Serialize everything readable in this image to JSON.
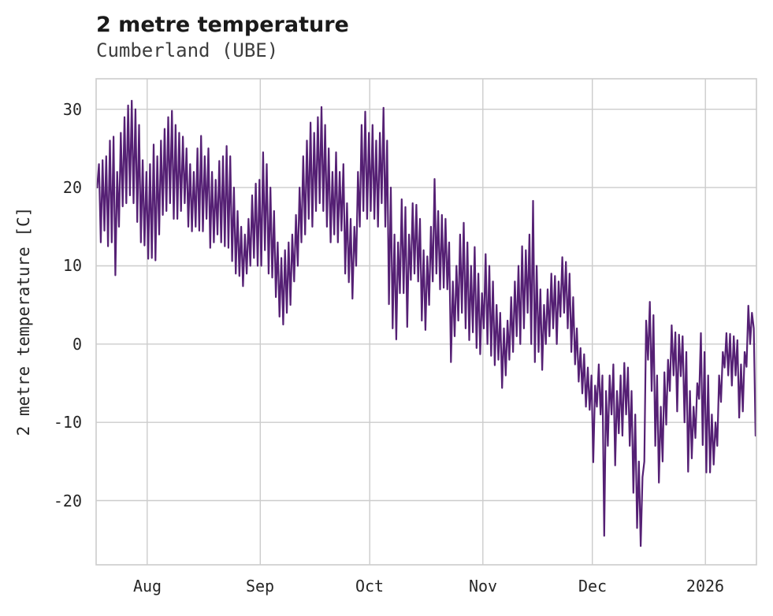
{
  "header": {
    "title": "2 metre temperature",
    "subtitle": "Cumberland (UBE)"
  },
  "chart_data": {
    "type": "line",
    "title": "2 metre temperature",
    "subtitle": "Cumberland (UBE)",
    "xlabel": "",
    "ylabel": "2 metre temperature [C]",
    "legend": "none",
    "grid": "on",
    "line_color": "#552074",
    "grid_color": "#cccccc",
    "background_color": "#ffffff",
    "y_ticks": [
      30,
      20,
      10,
      0,
      -10,
      -20
    ],
    "y_axis_range": [
      -28.2,
      33.9
    ],
    "x_tick_labels": [
      "Aug",
      "Sep",
      "Oct",
      "Nov",
      "Dec",
      "2026"
    ],
    "x_tick_day_index": [
      14,
      45,
      75,
      106,
      136,
      167
    ],
    "x_start_day": "Jul 18",
    "days_total": 181,
    "series_description": "hourly 2 metre temperature shown as daily [first,second] swing values in degrees C, day 0 = Jul 18",
    "daily_min_max": [
      [
        20,
        23
      ],
      [
        13,
        23.5
      ],
      [
        14.5,
        24
      ],
      [
        12.5,
        26
      ],
      [
        13,
        26.5
      ],
      [
        8.8,
        22
      ],
      [
        15,
        27
      ],
      [
        17.6,
        29
      ],
      [
        18,
        30.5
      ],
      [
        19,
        31.1
      ],
      [
        18,
        30
      ],
      [
        15.6,
        28
      ],
      [
        13,
        23.5
      ],
      [
        12.6,
        22
      ],
      [
        10.9,
        23
      ],
      [
        11,
        25.5
      ],
      [
        10.7,
        24
      ],
      [
        14,
        26
      ],
      [
        16.5,
        27.5
      ],
      [
        17,
        29
      ],
      [
        18,
        29.8
      ],
      [
        16,
        28
      ],
      [
        16,
        27
      ],
      [
        17,
        26.5
      ],
      [
        18,
        25
      ],
      [
        15,
        23
      ],
      [
        14.4,
        22
      ],
      [
        15,
        25
      ],
      [
        14.5,
        26.6
      ],
      [
        14.4,
        24
      ],
      [
        16,
        25
      ],
      [
        12.3,
        22
      ],
      [
        13,
        21
      ],
      [
        14,
        23.4
      ],
      [
        13,
        24
      ],
      [
        12.5,
        25.3
      ],
      [
        12.3,
        24
      ],
      [
        10.6,
        20
      ],
      [
        9,
        17
      ],
      [
        8.7,
        15
      ],
      [
        7.4,
        14
      ],
      [
        9,
        16
      ],
      [
        10,
        19
      ],
      [
        11,
        20.5
      ],
      [
        10,
        21
      ],
      [
        10,
        24.5
      ],
      [
        12,
        23
      ],
      [
        9,
        20
      ],
      [
        8.5,
        17
      ],
      [
        6,
        13
      ],
      [
        3.5,
        11
      ],
      [
        2.5,
        12
      ],
      [
        4,
        13
      ],
      [
        5,
        14
      ],
      [
        8,
        16.5
      ],
      [
        10,
        20
      ],
      [
        13,
        24
      ],
      [
        14,
        26
      ],
      [
        16,
        28.3
      ],
      [
        15,
        27
      ],
      [
        17,
        29
      ],
      [
        18,
        30.3
      ],
      [
        17,
        28
      ],
      [
        15,
        25
      ],
      [
        13,
        22
      ],
      [
        14,
        24.5
      ],
      [
        13,
        22
      ],
      [
        14.5,
        23
      ],
      [
        9,
        18
      ],
      [
        7.9,
        16
      ],
      [
        5.8,
        15
      ],
      [
        10,
        22
      ],
      [
        15,
        28
      ],
      [
        17,
        29.7
      ],
      [
        16,
        27
      ],
      [
        17,
        28
      ],
      [
        16,
        26
      ],
      [
        15,
        27
      ],
      [
        18,
        30.2
      ],
      [
        15,
        26
      ],
      [
        5.1,
        20
      ],
      [
        2,
        14
      ],
      [
        0.6,
        13
      ],
      [
        6.5,
        18.5
      ],
      [
        6.5,
        17.5
      ],
      [
        2.2,
        14
      ],
      [
        8.2,
        18
      ],
      [
        9,
        17.8
      ],
      [
        8,
        16
      ],
      [
        3,
        12
      ],
      [
        1.8,
        11.2
      ],
      [
        5,
        15
      ],
      [
        8,
        21.1
      ],
      [
        9,
        17
      ],
      [
        7,
        16.5
      ],
      [
        7.2,
        16
      ],
      [
        7,
        13
      ],
      [
        -2.3,
        8
      ],
      [
        1,
        10
      ],
      [
        3,
        14
      ],
      [
        4,
        15.5
      ],
      [
        2,
        13
      ],
      [
        0.5,
        10
      ],
      [
        1.5,
        12.4
      ],
      [
        -0.5,
        9
      ],
      [
        -1.3,
        6.5
      ],
      [
        2,
        11.5
      ],
      [
        0,
        10
      ],
      [
        -1.5,
        8
      ],
      [
        -2.7,
        5
      ],
      [
        -2,
        4
      ],
      [
        -5.6,
        2
      ],
      [
        -4,
        3
      ],
      [
        -2,
        6
      ],
      [
        -1,
        8
      ],
      [
        1,
        10
      ],
      [
        0,
        12.5
      ],
      [
        2,
        12
      ],
      [
        4,
        14
      ],
      [
        0,
        18.3
      ],
      [
        -2.3,
        10
      ],
      [
        -1,
        7
      ],
      [
        -3.3,
        5
      ],
      [
        0,
        7
      ],
      [
        1,
        9
      ],
      [
        2,
        8.7
      ],
      [
        0,
        8
      ],
      [
        3.5,
        11.1
      ],
      [
        4,
        10.5
      ],
      [
        2,
        9
      ],
      [
        -1,
        6
      ],
      [
        -2.6,
        2
      ],
      [
        -4.8,
        -0.5
      ],
      [
        -6.3,
        -1.3
      ],
      [
        -8,
        -3
      ],
      [
        -8.4,
        -4
      ],
      [
        -15.1,
        -5.3
      ],
      [
        -8,
        -2.6
      ],
      [
        -9,
        -4
      ],
      [
        -24.5,
        -6
      ],
      [
        -13,
        -4
      ],
      [
        -9,
        -2.6
      ],
      [
        -15.5,
        -6
      ],
      [
        -11.4,
        -4
      ],
      [
        -11.7,
        -2.4
      ],
      [
        -9,
        -3
      ],
      [
        -13,
        -6
      ],
      [
        -19,
        -9
      ],
      [
        -23.5,
        -15
      ],
      [
        -25.8,
        -17
      ],
      [
        -15,
        3
      ],
      [
        -2,
        5.4
      ],
      [
        -6,
        3.7
      ],
      [
        -13,
        -4
      ],
      [
        -17.7,
        -8
      ],
      [
        -15,
        -3.6
      ],
      [
        -10.3,
        -2
      ],
      [
        -6,
        2.4
      ],
      [
        -4,
        1.5
      ],
      [
        -8.6,
        1.2
      ],
      [
        -4.1,
        1
      ],
      [
        -10,
        -1
      ],
      [
        -16.3,
        -6
      ],
      [
        -14.6,
        -8
      ],
      [
        -12,
        -5
      ],
      [
        -7,
        1.4
      ],
      [
        -12.9,
        -1
      ],
      [
        -16.4,
        -4
      ],
      [
        -16.4,
        -9
      ],
      [
        -15.4,
        -10
      ],
      [
        -13,
        -4
      ],
      [
        -7.4,
        -1
      ],
      [
        -3,
        1.4
      ],
      [
        -4,
        1.3
      ],
      [
        -5.3,
        1
      ],
      [
        -4,
        0.5
      ],
      [
        -9.4,
        -2.6
      ],
      [
        -8.6,
        -1
      ],
      [
        -2.9,
        4.9
      ],
      [
        0,
        4
      ],
      [
        2,
        -11.7
      ]
    ]
  }
}
